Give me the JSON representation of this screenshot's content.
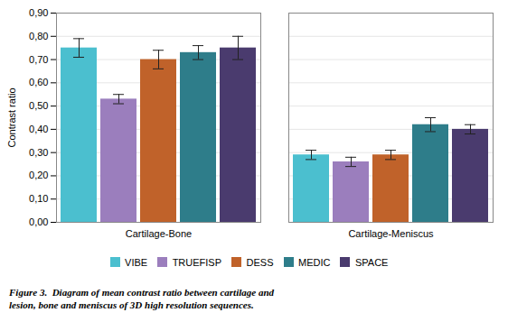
{
  "chart_data": {
    "type": "bar",
    "categories": [
      "Cartilage-Bone",
      "Cartilage-Meniscus"
    ],
    "series": [
      {
        "name": "VIBE",
        "color": "#4BBFCF",
        "values": [
          0.75,
          0.29
        ],
        "errors": [
          0.04,
          0.02
        ]
      },
      {
        "name": "TRUEFISP",
        "color": "#9B7EBD",
        "values": [
          0.53,
          0.26
        ],
        "errors": [
          0.02,
          0.02
        ]
      },
      {
        "name": "DESS",
        "color": "#C0622A",
        "values": [
          0.7,
          0.29
        ],
        "errors": [
          0.04,
          0.02
        ]
      },
      {
        "name": "MEDIC",
        "color": "#2E7D8A",
        "values": [
          0.73,
          0.42
        ],
        "errors": [
          0.03,
          0.03
        ]
      },
      {
        "name": "SPACE",
        "color": "#4A3B6E",
        "values": [
          0.75,
          0.4
        ],
        "errors": [
          0.05,
          0.02
        ]
      }
    ],
    "ylabel": "Contrast ratio",
    "ylim": [
      0,
      0.9
    ],
    "yticks": [
      {
        "value": 0.0,
        "label": "0,00"
      },
      {
        "value": 0.1,
        "label": "0,10"
      },
      {
        "value": 0.2,
        "label": "0,20"
      },
      {
        "value": 0.3,
        "label": "0,30"
      },
      {
        "value": 0.4,
        "label": "0,40"
      },
      {
        "value": 0.5,
        "label": "0,50"
      },
      {
        "value": 0.6,
        "label": "0,60"
      },
      {
        "value": 0.7,
        "label": "0,70"
      },
      {
        "value": 0.8,
        "label": "0,80"
      },
      {
        "value": 0.9,
        "label": "0,90"
      }
    ],
    "grid": true,
    "legend": "bottom",
    "caption": [
      "Figure 3.  Diagram of mean contrast ratio between cartilage and",
      "lesion, bone and meniscus of 3D high resolution sequences."
    ]
  }
}
